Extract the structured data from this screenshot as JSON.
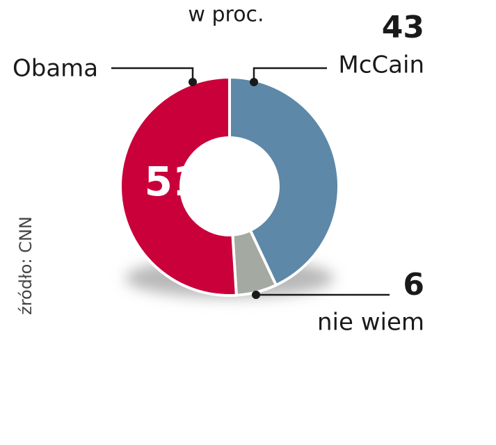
{
  "chart_data": {
    "type": "donut",
    "subtitle": "w proc.",
    "source": "źródło: CNN",
    "categories": [
      "McCain",
      "nie wiem",
      "Obama"
    ],
    "values": [
      43,
      6,
      51
    ],
    "colors": [
      "#5d88a8",
      "#a4a9a1",
      "#c9003a"
    ]
  }
}
